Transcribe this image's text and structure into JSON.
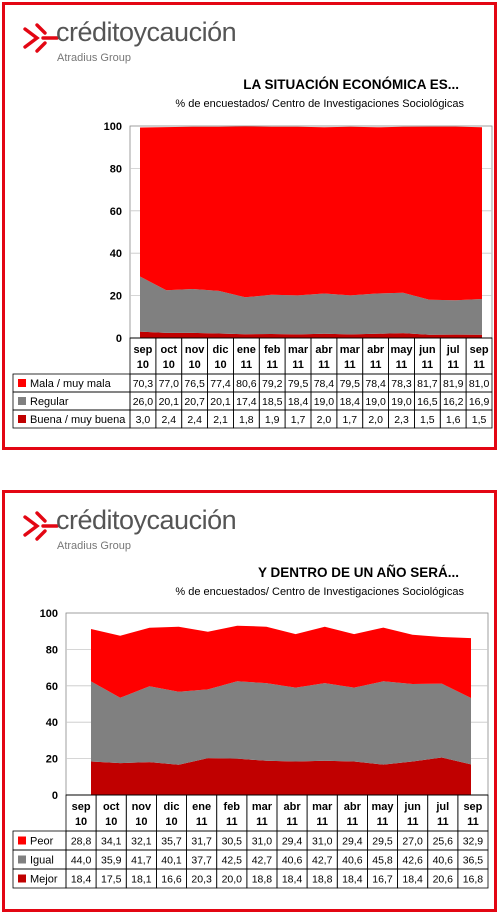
{
  "brand": {
    "name": "créditoycaución",
    "group": "Atradius Group"
  },
  "panels": [
    {
      "title": "LA SITUACIÓN ECONÓMICA ES...",
      "subtitle": "% de encuestados/ Centro de Investigaciones Sociológicas"
    },
    {
      "title": "Y DENTRO DE UN AÑO SERÁ...",
      "subtitle": "% de encuestados/ Centro de Investigaciones Sociológicas"
    }
  ],
  "colors": {
    "red": "#ff0000",
    "gray": "#808080",
    "darkred": "#c00000",
    "border": "#e30613"
  },
  "chart_data": [
    {
      "type": "area",
      "stacked": true,
      "categories": [
        [
          "sep",
          "10"
        ],
        [
          "oct",
          "10"
        ],
        [
          "nov",
          "10"
        ],
        [
          "dic",
          "10"
        ],
        [
          "ene",
          "11"
        ],
        [
          "feb",
          "11"
        ],
        [
          "mar",
          "11"
        ],
        [
          "abr",
          "11"
        ],
        [
          "mar",
          "11"
        ],
        [
          "abr",
          "11"
        ],
        [
          "may",
          "11"
        ],
        [
          "jun",
          "11"
        ],
        [
          "jul",
          "11"
        ],
        [
          "sep",
          "11"
        ]
      ],
      "ylim": [
        0,
        100
      ],
      "yticks": [
        "0",
        "20",
        "40",
        "60",
        "80",
        "100"
      ],
      "series": [
        {
          "name": "Buena / muy buena",
          "color": "#c00000",
          "values": [
            3.0,
            2.4,
            2.4,
            2.1,
            1.8,
            1.9,
            1.7,
            2.0,
            1.7,
            2.0,
            2.3,
            1.5,
            1.6,
            1.5
          ],
          "labels": [
            "3,0",
            "2,4",
            "2,4",
            "2,1",
            "1,8",
            "1,9",
            "1,7",
            "2,0",
            "1,7",
            "2,0",
            "2,3",
            "1,5",
            "1,6",
            "1,5"
          ]
        },
        {
          "name": "Regular",
          "color": "#808080",
          "values": [
            26.0,
            20.1,
            20.7,
            20.1,
            17.4,
            18.5,
            18.4,
            19.0,
            18.4,
            19.0,
            19.0,
            16.5,
            16.2,
            16.9
          ],
          "labels": [
            "26,0",
            "20,1",
            "20,7",
            "20,1",
            "17,4",
            "18,5",
            "18,4",
            "19,0",
            "18,4",
            "19,0",
            "19,0",
            "16,5",
            "16,2",
            "16,9"
          ]
        },
        {
          "name": "Mala / muy mala",
          "color": "#ff0000",
          "values": [
            70.3,
            77.0,
            76.5,
            77.4,
            80.6,
            79.2,
            79.5,
            78.4,
            79.5,
            78.4,
            78.3,
            81.7,
            81.9,
            81.0
          ],
          "labels": [
            "70,3",
            "77,0",
            "76,5",
            "77,4",
            "80,6",
            "79,2",
            "79,5",
            "78,4",
            "79,5",
            "78,4",
            "78,3",
            "81,7",
            "81,9",
            "81,0"
          ]
        }
      ],
      "table_order": [
        "Mala / muy mala",
        "Regular",
        "Buena / muy buena"
      ]
    },
    {
      "type": "area",
      "stacked": true,
      "categories": [
        [
          "sep",
          "10"
        ],
        [
          "oct",
          "10"
        ],
        [
          "nov",
          "10"
        ],
        [
          "dic",
          "10"
        ],
        [
          "ene",
          "11"
        ],
        [
          "feb",
          "11"
        ],
        [
          "mar",
          "11"
        ],
        [
          "abr",
          "11"
        ],
        [
          "mar",
          "11"
        ],
        [
          "abr",
          "11"
        ],
        [
          "may",
          "11"
        ],
        [
          "jun",
          "11"
        ],
        [
          "jul",
          "11"
        ],
        [
          "sep",
          "11"
        ]
      ],
      "ylim": [
        0,
        100
      ],
      "yticks": [
        "0",
        "20",
        "40",
        "60",
        "80",
        "100"
      ],
      "series": [
        {
          "name": "Mejor",
          "color": "#c00000",
          "values": [
            18.4,
            17.5,
            18.1,
            16.6,
            20.3,
            20.0,
            18.8,
            18.4,
            18.8,
            18.4,
            16.7,
            18.4,
            20.6,
            16.8
          ],
          "labels": [
            "18,4",
            "17,5",
            "18,1",
            "16,6",
            "20,3",
            "20,0",
            "18,8",
            "18,4",
            "18,8",
            "18,4",
            "16,7",
            "18,4",
            "20,6",
            "16,8"
          ]
        },
        {
          "name": "Igual",
          "color": "#808080",
          "values": [
            44.0,
            35.9,
            41.7,
            40.1,
            37.7,
            42.5,
            42.7,
            40.6,
            42.7,
            40.6,
            45.8,
            42.6,
            40.6,
            36.5
          ],
          "labels": [
            "44,0",
            "35,9",
            "41,7",
            "40,1",
            "37,7",
            "42,5",
            "42,7",
            "40,6",
            "42,7",
            "40,6",
            "45,8",
            "42,6",
            "40,6",
            "36,5"
          ]
        },
        {
          "name": "Peor",
          "color": "#ff0000",
          "values": [
            28.8,
            34.1,
            32.1,
            35.7,
            31.7,
            30.5,
            31.0,
            29.4,
            31.0,
            29.4,
            29.5,
            27.0,
            25.6,
            32.9
          ],
          "labels": [
            "28,8",
            "34,1",
            "32,1",
            "35,7",
            "31,7",
            "30,5",
            "31,0",
            "29,4",
            "31,0",
            "29,4",
            "29,5",
            "27,0",
            "25,6",
            "32,9"
          ]
        }
      ],
      "table_order": [
        "Peor",
        "Igual",
        "Mejor"
      ]
    }
  ]
}
